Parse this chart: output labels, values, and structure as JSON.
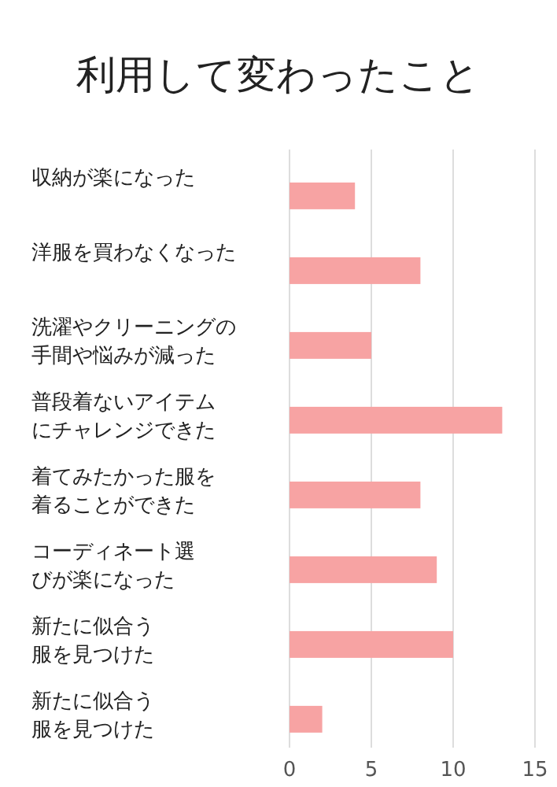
{
  "chart_data": {
    "type": "bar",
    "orientation": "horizontal",
    "title": "利用して変わったこと",
    "categories": [
      "収納が楽になった",
      "洋服を買わなくなった",
      "洗濯やクリーニングの手間や悩みが減った",
      "普段着ないアイテムにチャレンジできた",
      "着てみたかった服を着ることができた",
      "コーディネート選びが楽になった",
      "新たに似合う服を見つけた",
      "新たに似合う服を見つけた"
    ],
    "values": [
      4,
      8,
      5,
      13,
      8,
      9,
      10,
      2
    ],
    "color": "#f7a3a3",
    "xlim": [
      0,
      15
    ],
    "xticks": [
      0,
      5,
      10,
      15
    ],
    "grid": "x"
  }
}
